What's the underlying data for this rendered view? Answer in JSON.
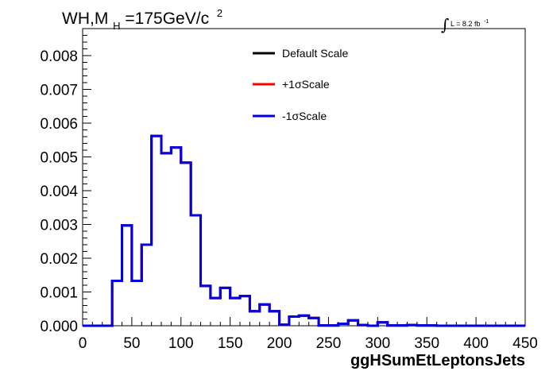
{
  "chart_data": {
    "type": "line",
    "title": {
      "prefix": "WH,M",
      "subscript": "H",
      "middle": "=175GeV/c",
      "superscript": "2"
    },
    "luminosity": {
      "symbol": "∫",
      "text": "L = 8.2 fb",
      "superscript": "-1"
    },
    "xlabel": "ggHSumEtLeptonsJets",
    "ylabel": "",
    "xlim": [
      0,
      450
    ],
    "ylim": [
      0,
      0.0088
    ],
    "xticks": [
      0,
      50,
      100,
      150,
      200,
      250,
      300,
      350,
      400,
      450
    ],
    "yticks": [
      0,
      0.001,
      0.002,
      0.003,
      0.004,
      0.005,
      0.006,
      0.007,
      0.008
    ],
    "ytick_labels": [
      "0.000",
      "0.001",
      "0.002",
      "0.003",
      "0.004",
      "0.005",
      "0.006",
      "0.007",
      "0.008"
    ],
    "bin_width": 10,
    "bin_edges_start": 0,
    "series": [
      {
        "name": "Default Scale",
        "color": "#000000",
        "values": [
          0,
          0,
          0,
          0.00133,
          0.00297,
          0.00133,
          0.0024,
          0.00562,
          0.00511,
          0.00528,
          0.00483,
          0.00327,
          0.00118,
          0.00082,
          0.00112,
          0.00082,
          0.00088,
          0.00043,
          0.00063,
          0.00043,
          3e-05,
          0.00027,
          0.0003,
          0.00023,
          1e-05,
          1e-05,
          6e-05,
          0.00016,
          2e-05,
          0.0,
          0.0001,
          1e-05,
          1e-05,
          2e-05,
          1e-05,
          1e-05,
          0,
          0,
          0,
          0,
          0,
          0,
          0,
          0,
          0
        ]
      },
      {
        "name": "+1σScale",
        "color": "#ff0000",
        "values": [
          0,
          0,
          0,
          0.00133,
          0.00297,
          0.00133,
          0.0024,
          0.00562,
          0.00511,
          0.00528,
          0.00483,
          0.00327,
          0.00118,
          0.00082,
          0.00112,
          0.00082,
          0.00088,
          0.00043,
          0.00063,
          0.00043,
          3e-05,
          0.00027,
          0.0003,
          0.00023,
          1e-05,
          1e-05,
          6e-05,
          0.00016,
          2e-05,
          0.0,
          0.0001,
          1e-05,
          1e-05,
          2e-05,
          1e-05,
          1e-05,
          0,
          0,
          0,
          0,
          0,
          0,
          0,
          0,
          0
        ]
      },
      {
        "name": "-1σScale",
        "color": "#0000e0",
        "values": [
          0,
          0,
          0,
          0.00133,
          0.00297,
          0.00133,
          0.0024,
          0.00562,
          0.00511,
          0.00528,
          0.00483,
          0.00327,
          0.00118,
          0.00082,
          0.00112,
          0.00082,
          0.00088,
          0.00043,
          0.00063,
          0.00043,
          3e-05,
          0.00027,
          0.0003,
          0.00023,
          1e-05,
          1e-05,
          6e-05,
          0.00016,
          2e-05,
          0.0,
          0.0001,
          1e-05,
          1e-05,
          2e-05,
          1e-05,
          1e-05,
          0,
          0,
          0,
          0,
          0,
          0,
          0,
          0,
          0
        ]
      }
    ],
    "legend_placement": "top-center",
    "grid": false
  }
}
